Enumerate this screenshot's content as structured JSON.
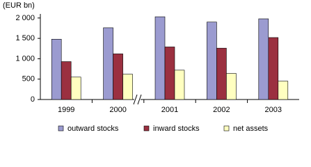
{
  "chart_data": {
    "type": "bar",
    "y_label": "(EUR bn)",
    "categories": [
      "1999",
      "2000",
      "2001",
      "2002",
      "2003"
    ],
    "series": [
      {
        "name": "outward stocks",
        "color": "#9b9bd0",
        "values": [
          1480,
          1760,
          2030,
          1900,
          1980
        ]
      },
      {
        "name": "inward stocks",
        "color": "#9b3040",
        "values": [
          930,
          1120,
          1290,
          1260,
          1520
        ]
      },
      {
        "name": "net assets",
        "color": "#ffffc0",
        "values": [
          550,
          620,
          720,
          640,
          450
        ]
      }
    ],
    "ylim": [
      0,
      2100
    ],
    "yticks": [
      0,
      500,
      {
        "value": 1000,
        "label": "1 000"
      },
      {
        "value": 1500,
        "label": "1 500"
      },
      {
        "value": 2000,
        "label": "2 000"
      }
    ],
    "grid": false
  }
}
